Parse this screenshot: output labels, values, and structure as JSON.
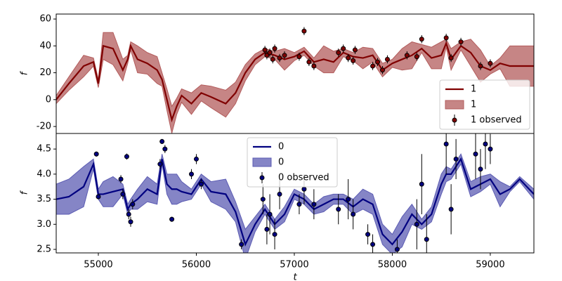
{
  "chart_data": [
    {
      "type": "line",
      "ylabel": "f",
      "legend": "lower right",
      "grid": false,
      "xlim": [
        54570,
        59445
      ],
      "ylim": [
        -25.2,
        63.7
      ],
      "yticks": [
        -20,
        0,
        20,
        40,
        60
      ],
      "x": [
        54570,
        54700,
        54850,
        54950,
        55000,
        55050,
        55150,
        55250,
        55300,
        55330,
        55400,
        55500,
        55600,
        55650,
        55700,
        55750,
        55800,
        55850,
        55950,
        56050,
        56150,
        56300,
        56400,
        56500,
        56600,
        56700,
        56800,
        56900,
        57000,
        57100,
        57200,
        57300,
        57400,
        57500,
        57600,
        57700,
        57800,
        57900,
        58000,
        58100,
        58200,
        58300,
        58400,
        58500,
        58550,
        58600,
        58700,
        58800,
        58900,
        59000,
        59100,
        59200,
        59300,
        59445
      ],
      "series": [
        {
          "name": "1",
          "color": "#800000",
          "values": [
            0,
            12,
            25,
            28,
            12,
            40,
            38,
            22,
            30,
            40,
            30,
            27,
            22,
            15,
            0,
            -15,
            -5,
            3,
            -3,
            5,
            2,
            -3,
            5,
            20,
            30,
            35,
            33,
            30,
            32,
            36,
            28,
            30,
            28,
            35,
            32,
            31,
            33,
            22,
            27,
            30,
            33,
            38,
            31,
            33,
            42,
            30,
            40,
            35,
            25,
            22,
            27,
            25,
            25,
            25
          ]
        }
      ],
      "band": {
        "name": "1",
        "color": "#b35c5c",
        "lower": [
          -3,
          7,
          17,
          25,
          9,
          30,
          26,
          14,
          27,
          37,
          20,
          19,
          12,
          10,
          -8,
          -25,
          -11,
          -2,
          -11,
          -1,
          -6,
          -13,
          -3,
          14,
          26,
          32,
          30,
          22,
          29,
          33,
          25,
          20,
          20,
          32,
          29,
          23,
          28,
          17,
          24,
          22,
          23,
          35,
          23,
          23,
          39,
          22,
          37,
          25,
          13,
          19,
          23,
          10,
          10,
          10
        ],
        "upper": [
          3,
          17,
          33,
          31,
          15,
          50,
          50,
          30,
          33,
          43,
          40,
          35,
          32,
          20,
          8,
          -5,
          1,
          8,
          5,
          11,
          10,
          7,
          13,
          26,
          34,
          38,
          36,
          38,
          35,
          39,
          31,
          40,
          36,
          38,
          35,
          39,
          38,
          27,
          30,
          38,
          43,
          41,
          39,
          43,
          45,
          38,
          43,
          45,
          37,
          25,
          31,
          40,
          40,
          40
        ]
      },
      "observed": {
        "name": "1 observed",
        "color": "#800000",
        "x": [
          56700,
          56720,
          56750,
          56780,
          56800,
          56850,
          56900,
          57050,
          57100,
          57150,
          57200,
          57450,
          57500,
          57550,
          57600,
          57620,
          57800,
          57850,
          57900,
          57950,
          58150,
          58250,
          58300,
          58550,
          58600,
          58700,
          58900,
          59000
        ],
        "values": [
          37,
          33,
          35,
          30,
          38,
          31,
          33,
          32,
          51,
          28,
          25,
          35,
          38,
          31,
          29,
          37,
          25,
          28,
          22,
          30,
          33,
          32,
          45,
          46,
          31,
          43,
          25,
          27
        ],
        "errors": [
          3,
          3,
          3,
          3,
          3,
          3,
          3,
          3,
          3,
          3,
          3,
          3,
          3,
          3,
          3,
          3,
          3,
          3,
          3,
          3,
          3,
          3,
          3,
          3,
          3,
          3,
          3,
          3
        ]
      }
    },
    {
      "type": "line",
      "ylabel": "f",
      "xlabel": "t",
      "legend": "upper center",
      "grid": false,
      "xlim": [
        54570,
        59445
      ],
      "ylim": [
        2.43,
        4.81
      ],
      "xticks": [
        55000,
        56000,
        57000,
        58000,
        59000
      ],
      "yticks": [
        2.5,
        {
          "value": 3,
          "label": "3.0"
        },
        3.5,
        {
          "value": 4,
          "label": "4.0"
        },
        4.5
      ],
      "x": [
        54570,
        54700,
        54850,
        54950,
        55000,
        55050,
        55150,
        55250,
        55300,
        55330,
        55400,
        55500,
        55600,
        55650,
        55700,
        55750,
        55800,
        55850,
        55950,
        56050,
        56150,
        56300,
        56400,
        56500,
        56600,
        56700,
        56800,
        56900,
        57000,
        57100,
        57200,
        57300,
        57400,
        57500,
        57600,
        57700,
        57800,
        57900,
        58000,
        58100,
        58200,
        58300,
        58400,
        58500,
        58550,
        58600,
        58700,
        58800,
        58900,
        59000,
        59100,
        59200,
        59300,
        59445
      ],
      "series": [
        {
          "name": "0",
          "color": "#000080",
          "values": [
            3.5,
            3.55,
            3.75,
            4.2,
            3.6,
            3.6,
            3.65,
            3.7,
            3.3,
            3.4,
            3.5,
            3.7,
            3.6,
            4.3,
            3.8,
            3.7,
            3.7,
            3.65,
            3.6,
            3.9,
            3.65,
            3.6,
            3.25,
            2.6,
            3.0,
            3.3,
            3.0,
            3.2,
            3.6,
            3.5,
            3.3,
            3.4,
            3.5,
            3.5,
            3.35,
            3.5,
            3.4,
            2.8,
            2.6,
            2.85,
            3.2,
            3.0,
            3.2,
            3.8,
            4.0,
            4.0,
            4.3,
            3.7,
            3.8,
            3.9,
            3.6,
            3.7,
            3.9,
            3.6
          ]
        }
      ],
      "band": {
        "name": "0",
        "color": "#5c5cb3",
        "lower": [
          3.2,
          3.2,
          3.35,
          4.1,
          3.5,
          3.35,
          3.35,
          3.6,
          3.2,
          3.3,
          3.3,
          3.45,
          3.4,
          4.2,
          3.6,
          3.4,
          3.4,
          3.45,
          3.5,
          3.8,
          3.45,
          3.3,
          3.05,
          2.3,
          2.85,
          3.2,
          2.9,
          3.05,
          3.5,
          3.4,
          3.2,
          3.25,
          3.4,
          3.4,
          3.2,
          3.3,
          3.2,
          2.6,
          2.4,
          2.55,
          3.0,
          2.9,
          3.05,
          3.6,
          3.85,
          3.9,
          4.2,
          3.55,
          3.65,
          3.8,
          3.35,
          3.65,
          3.85,
          3.5
        ],
        "upper": [
          3.8,
          3.9,
          4.15,
          4.3,
          3.7,
          3.85,
          3.95,
          3.8,
          3.4,
          3.5,
          3.7,
          3.95,
          3.8,
          4.4,
          4.0,
          4.0,
          4.0,
          3.85,
          3.7,
          4.0,
          3.85,
          3.9,
          3.45,
          2.9,
          3.15,
          3.4,
          3.1,
          3.35,
          3.7,
          3.6,
          3.4,
          3.55,
          3.6,
          3.6,
          3.5,
          3.7,
          3.6,
          3.0,
          2.8,
          3.15,
          3.4,
          3.1,
          3.35,
          4.0,
          4.15,
          4.1,
          4.4,
          3.85,
          3.95,
          4.0,
          3.85,
          3.75,
          3.95,
          3.7
        ]
      },
      "observed": {
        "name": "0 observed",
        "color": "#000080",
        "x": [
          54980,
          55000,
          55230,
          55250,
          55290,
          55310,
          55330,
          55350,
          55630,
          55650,
          55680,
          55750,
          55950,
          56000,
          56050,
          56460,
          56680,
          56720,
          56750,
          56800,
          56850,
          57050,
          57100,
          57200,
          57450,
          57550,
          57600,
          57750,
          57800,
          58050,
          58250,
          58300,
          58350,
          58550,
          58600,
          58650,
          58850,
          58900,
          58950,
          59000
        ],
        "values": [
          4.4,
          3.55,
          3.9,
          3.6,
          4.35,
          3.2,
          3.05,
          3.4,
          4.2,
          4.65,
          4.5,
          3.1,
          4.0,
          4.3,
          3.8,
          2.6,
          3.5,
          2.9,
          3.2,
          2.8,
          3.6,
          3.4,
          3.7,
          3.4,
          3.3,
          3.5,
          3.2,
          2.8,
          2.6,
          2.5,
          3.0,
          3.8,
          2.7,
          4.6,
          3.3,
          4.3,
          4.4,
          4.1,
          4.6,
          4.5
        ],
        "errors": [
          0.05,
          0.05,
          0.08,
          0.1,
          0.06,
          0.1,
          0.1,
          0.1,
          0.1,
          0.05,
          0.08,
          0.05,
          0.1,
          0.1,
          0.1,
          0.1,
          0.3,
          0.3,
          0.4,
          0.3,
          0.3,
          0.2,
          0.3,
          0.3,
          0.3,
          0.4,
          0.3,
          0.2,
          0.2,
          0.2,
          0.5,
          0.6,
          0.5,
          0.6,
          0.5,
          0.4,
          0.5,
          0.4,
          0.5,
          0.3
        ]
      }
    }
  ]
}
